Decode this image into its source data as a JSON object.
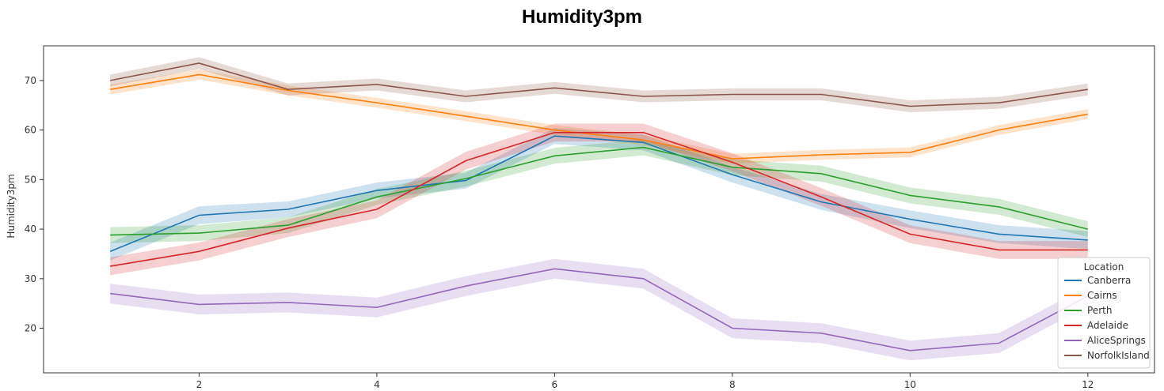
{
  "chart_data": {
    "type": "line",
    "title": "Humidity3pm",
    "xlabel": "",
    "ylabel": "Humidity3pm",
    "x": [
      1,
      2,
      3,
      4,
      5,
      6,
      7,
      8,
      9,
      10,
      11,
      12
    ],
    "xticks": [
      2,
      4,
      6,
      8,
      10,
      12
    ],
    "yticks": [
      20,
      30,
      40,
      50,
      60,
      70
    ],
    "xlim": [
      0.25,
      12.75
    ],
    "ylim": [
      11,
      77
    ],
    "grid": false,
    "confidence_bands": true,
    "legend": {
      "title": "Location",
      "placement": "lower-right"
    },
    "series": [
      {
        "name": "Canberra",
        "color": "#1f77b4",
        "values": [
          35.5,
          42.8,
          44,
          47.8,
          49.8,
          58.8,
          57.5,
          51,
          45.5,
          42,
          39,
          37.8
        ],
        "band": [
          1.8,
          1.8,
          1.6,
          1.6,
          1.6,
          1.6,
          1.6,
          1.6,
          1.6,
          1.8,
          1.8,
          1.8
        ]
      },
      {
        "name": "Cairns",
        "color": "#ff7f0e",
        "values": [
          68.2,
          71.2,
          68,
          65.5,
          62.8,
          60,
          58,
          54.2,
          55,
          55.5,
          60,
          63.2
        ],
        "band": [
          1.0,
          1.0,
          1.0,
          1.0,
          1.0,
          1.0,
          1.0,
          1.0,
          1.0,
          1.0,
          1.0,
          1.0
        ]
      },
      {
        "name": "Perth",
        "color": "#2ca02c",
        "values": [
          38.8,
          39.2,
          40.8,
          46.5,
          50.2,
          54.8,
          56.5,
          52.5,
          51.2,
          46.8,
          44.5,
          40
        ],
        "band": [
          1.6,
          1.6,
          1.6,
          1.6,
          1.6,
          1.6,
          1.6,
          1.6,
          1.6,
          1.6,
          1.6,
          1.6
        ]
      },
      {
        "name": "Adelaide",
        "color": "#d62728",
        "values": [
          32.5,
          35.5,
          40.2,
          44,
          53.8,
          59.5,
          59.5,
          53.5,
          46.5,
          39,
          35.8,
          35.8
        ],
        "band": [
          1.8,
          1.8,
          1.8,
          1.8,
          1.8,
          1.8,
          1.8,
          1.8,
          1.8,
          1.8,
          1.8,
          1.8
        ]
      },
      {
        "name": "AliceSprings",
        "color": "#9467bd",
        "values": [
          27,
          24.8,
          25.2,
          24.2,
          28.5,
          32,
          30,
          20,
          19,
          15.5,
          17,
          26.5
        ],
        "band": [
          2.0,
          2.0,
          2.0,
          2.0,
          2.0,
          2.0,
          2.0,
          2.0,
          2.0,
          2.0,
          2.0,
          2.0
        ]
      },
      {
        "name": "NorfolkIsland",
        "color": "#8c564b",
        "values": [
          70,
          73.5,
          68.2,
          69.2,
          66.8,
          68.5,
          66.8,
          67.2,
          67.2,
          64.8,
          65.5,
          68.2
        ],
        "band": [
          1.2,
          1.2,
          1.2,
          1.2,
          1.2,
          1.2,
          1.2,
          1.2,
          1.2,
          1.2,
          1.2,
          1.2
        ]
      }
    ]
  }
}
